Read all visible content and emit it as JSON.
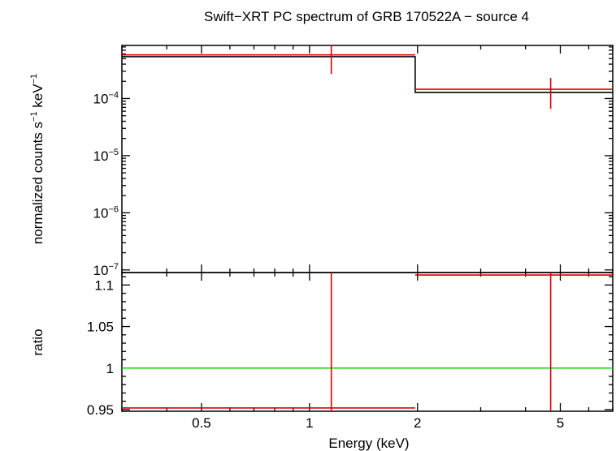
{
  "chart_data": [
    {
      "type": "line",
      "title": "Swift−XRT PC spectrum of GRB 170522A − source 4",
      "ylabel": {
        "prefix": "normalized counts s",
        "sup1": "−1",
        "mid": " keV",
        "sup2": "−1"
      },
      "xscale": "log",
      "yscale": "log",
      "xlim": [
        0.3,
        7.0
      ],
      "ylim": [
        9e-08,
        0.00085
      ],
      "xticks": [
        {
          "value": 0.5,
          "label": "0.5"
        },
        {
          "value": 1,
          "label": "1"
        },
        {
          "value": 2,
          "label": "2"
        },
        {
          "value": 5,
          "label": "5"
        }
      ],
      "yticks": [
        {
          "value": 0.0001,
          "base": "10",
          "exp": "−4"
        },
        {
          "value": 1e-05,
          "base": "10",
          "exp": "−5"
        },
        {
          "value": 1e-06,
          "base": "10",
          "exp": "−6"
        },
        {
          "value": 1e-07,
          "base": "10",
          "exp": "−7"
        }
      ],
      "series": [
        {
          "kind": "data",
          "color": "#dd0000",
          "points": [
            {
              "x": 1.15,
              "xlo": 0.3,
              "xhi": 1.97,
              "y": 0.00058,
              "ylo": 0.00027,
              "yhi": 0.0009
            },
            {
              "x": 4.7,
              "xlo": 1.97,
              "xhi": 7.0,
              "y": 0.000145,
              "ylo": 6.6e-05,
              "yhi": 0.00023
            }
          ]
        },
        {
          "kind": "model",
          "color": "#000000",
          "steps": [
            {
              "xlo": 0.3,
              "xhi": 1.97,
              "y": 0.00054
            },
            {
              "xlo": 1.97,
              "xhi": 7.0,
              "y": 0.000128
            }
          ]
        }
      ]
    },
    {
      "type": "line",
      "ylabel": "ratio",
      "xlabel": "Energy (keV)",
      "xscale": "log",
      "xlim": [
        0.3,
        7.0
      ],
      "ylim": [
        0.948,
        1.115
      ],
      "yticks": [
        {
          "value": 0.95,
          "label": "0.95"
        },
        {
          "value": 1.0,
          "label": "1"
        },
        {
          "value": 1.05,
          "label": "1.05"
        },
        {
          "value": 1.1,
          "label": "1.1"
        }
      ],
      "reference": {
        "y": 1.0,
        "color": "#00dd00"
      },
      "series": [
        {
          "kind": "ratio",
          "color": "#dd0000",
          "points": [
            {
              "x": 1.15,
              "xlo": 0.3,
              "xhi": 1.97,
              "y": 0.952,
              "ylo": 0.94,
              "yhi": 1.2
            },
            {
              "x": 4.7,
              "xlo": 1.97,
              "xhi": 7.0,
              "y": 1.112,
              "ylo": 0.94,
              "yhi": 1.2
            }
          ]
        }
      ]
    }
  ]
}
